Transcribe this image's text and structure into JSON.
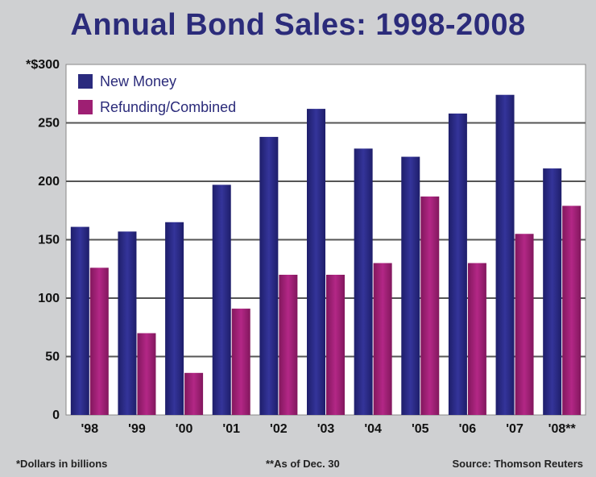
{
  "chart_data": {
    "type": "bar",
    "title": "Annual Bond Sales: 1998-2008",
    "categories": [
      "'98",
      "'99",
      "'00",
      "'01",
      "'02",
      "'03",
      "'04",
      "'05",
      "'06",
      "'07",
      "'08**"
    ],
    "series": [
      {
        "name": "New Money",
        "color": "#2a2a7e",
        "values": [
          161,
          157,
          165,
          197,
          238,
          262,
          228,
          221,
          258,
          274,
          211
        ]
      },
      {
        "name": "Refunding/Combined",
        "color": "#9e1f73",
        "values": [
          126,
          70,
          36,
          91,
          120,
          120,
          130,
          187,
          130,
          155,
          179
        ]
      }
    ],
    "y_ticks": [
      "0",
      "50",
      "100",
      "150",
      "200",
      "250",
      "*$300"
    ],
    "ylim": [
      0,
      300
    ],
    "grid": true,
    "legend_position": "top-left",
    "xlabel": "",
    "ylabel": ""
  },
  "footnotes": {
    "units": "*Dollars in billions",
    "asof": "**As of Dec. 30",
    "source": "Source: Thomson Reuters"
  }
}
